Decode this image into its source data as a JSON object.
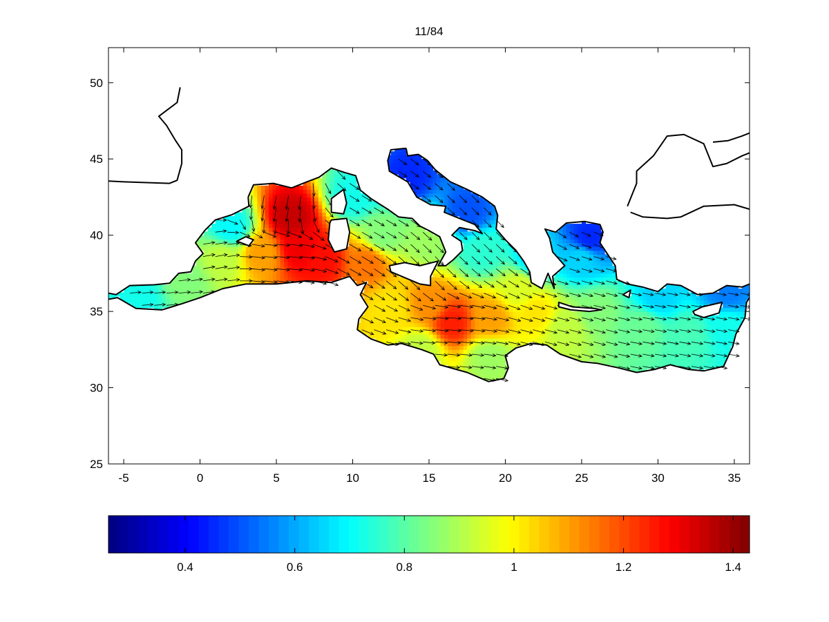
{
  "chart_data": {
    "type": "heatmap",
    "subtype": "geographic vector field over colored scalar field",
    "title": "11/84",
    "xlabel": "",
    "ylabel": "",
    "xlim": [
      -6,
      36
    ],
    "ylim": [
      25,
      52.3
    ],
    "xticks": [
      -5,
      0,
      5,
      10,
      15,
      20,
      25,
      30,
      35
    ],
    "yticks": [
      25,
      30,
      35,
      40,
      45,
      50
    ],
    "grid": false,
    "colormap": "jet",
    "colorbar": {
      "orientation": "horizontal",
      "location": "bottom",
      "range": [
        0.26,
        1.43
      ],
      "ticks": [
        0.4,
        0.6,
        0.8,
        1,
        1.2,
        1.4
      ]
    },
    "field_samples": [
      {
        "lon": 6,
        "lat": 41.2,
        "value": 1.35
      },
      {
        "lon": 6.5,
        "lat": 39.2,
        "value": 1.3
      },
      {
        "lon": 8,
        "lat": 38.5,
        "value": 1.27
      },
      {
        "lon": 11,
        "lat": 38.2,
        "value": 1.15
      },
      {
        "lon": 4,
        "lat": 38.8,
        "value": 1.1
      },
      {
        "lon": 1.5,
        "lat": 38.5,
        "value": 0.92
      },
      {
        "lon": -1,
        "lat": 37,
        "value": 0.85
      },
      {
        "lon": -4,
        "lat": 36,
        "value": 0.72
      },
      {
        "lon": 2,
        "lat": 40.5,
        "value": 0.7
      },
      {
        "lon": 10,
        "lat": 42.5,
        "value": 0.72
      },
      {
        "lon": 12,
        "lat": 40,
        "value": 0.85
      },
      {
        "lon": 15,
        "lat": 39.8,
        "value": 0.88
      },
      {
        "lon": 13.5,
        "lat": 43.8,
        "value": 0.45
      },
      {
        "lon": 17.5,
        "lat": 41.5,
        "value": 0.5
      },
      {
        "lon": 18.5,
        "lat": 39,
        "value": 0.75
      },
      {
        "lon": 16.5,
        "lat": 34.3,
        "value": 1.25
      },
      {
        "lon": 15,
        "lat": 35.5,
        "value": 1.12
      },
      {
        "lon": 19,
        "lat": 34.5,
        "value": 1.1
      },
      {
        "lon": 12.5,
        "lat": 35.2,
        "value": 1.02
      },
      {
        "lon": 14.5,
        "lat": 32.5,
        "value": 0.92
      },
      {
        "lon": 19,
        "lat": 32,
        "value": 0.88
      },
      {
        "lon": 22,
        "lat": 35,
        "value": 1.02
      },
      {
        "lon": 24,
        "lat": 34,
        "value": 0.92
      },
      {
        "lon": 26,
        "lat": 35,
        "value": 0.85
      },
      {
        "lon": 29,
        "lat": 34,
        "value": 0.82
      },
      {
        "lon": 32,
        "lat": 33.5,
        "value": 0.78
      },
      {
        "lon": 34.5,
        "lat": 34,
        "value": 0.72
      },
      {
        "lon": 30,
        "lat": 36,
        "value": 0.65
      },
      {
        "lon": 34.5,
        "lat": 36.3,
        "value": 0.55
      },
      {
        "lon": 22,
        "lat": 38.5,
        "value": 0.65
      },
      {
        "lon": 25,
        "lat": 38.5,
        "value": 0.65
      },
      {
        "lon": 25.5,
        "lat": 39.8,
        "value": 0.45
      },
      {
        "lon": 21,
        "lat": 36.5,
        "value": 0.95
      }
    ],
    "wind_direction_deg_samples": [
      {
        "lon": 5,
        "lat": 42,
        "dir": 190
      },
      {
        "lon": 5,
        "lat": 39,
        "dir": 95
      },
      {
        "lon": 0,
        "lat": 38.5,
        "dir": 80
      },
      {
        "lon": -3,
        "lat": 36,
        "dir": 85
      },
      {
        "lon": 11,
        "lat": 41,
        "dir": 120
      },
      {
        "lon": 16,
        "lat": 34,
        "dir": 95
      },
      {
        "lon": 15,
        "lat": 38,
        "dir": 135
      },
      {
        "lon": 25,
        "lat": 34,
        "dir": 105
      },
      {
        "lon": 30,
        "lat": 34,
        "dir": 100
      },
      {
        "lon": 18,
        "lat": 41,
        "dir": 135
      }
    ],
    "coastline": {
      "iberia_southeast": [
        [
          -6,
          36.2
        ],
        [
          -5.5,
          36.1
        ],
        [
          -4.6,
          36.7
        ],
        [
          -3,
          36.75
        ],
        [
          -2,
          36.85
        ],
        [
          -1.4,
          37.5
        ],
        [
          -0.6,
          37.6
        ],
        [
          -0.3,
          38.3
        ],
        [
          0.2,
          38.8
        ],
        [
          -0.3,
          39.5
        ],
        [
          0.3,
          40.3
        ],
        [
          1,
          41
        ],
        [
          2.1,
          41.35
        ],
        [
          3.2,
          41.9
        ],
        [
          3.15,
          42.5
        ]
      ],
      "france_italy": [
        [
          3.15,
          42.5
        ],
        [
          3.5,
          43.3
        ],
        [
          4.8,
          43.4
        ],
        [
          6,
          43.1
        ],
        [
          7,
          43.5
        ],
        [
          7.8,
          43.8
        ],
        [
          8.6,
          44.4
        ],
        [
          9.5,
          44.1
        ],
        [
          10.2,
          43.9
        ],
        [
          10.5,
          42.95
        ],
        [
          11.2,
          42.4
        ],
        [
          12.3,
          41.7
        ],
        [
          13,
          41.2
        ],
        [
          13.9,
          41.1
        ],
        [
          14.4,
          40.6
        ],
        [
          15,
          40.3
        ],
        [
          15.7,
          39.9
        ],
        [
          16.1,
          38.9
        ],
        [
          15.6,
          38
        ],
        [
          16.1,
          38
        ],
        [
          16.6,
          38.4
        ],
        [
          17.2,
          39
        ],
        [
          17.1,
          39.6
        ],
        [
          16.5,
          40
        ],
        [
          17,
          40.5
        ],
        [
          18,
          40.3
        ],
        [
          18.5,
          40.1
        ],
        [
          18,
          40.7
        ],
        [
          17,
          41.1
        ],
        [
          16,
          41.5
        ],
        [
          16.1,
          41.9
        ],
        [
          15.1,
          42
        ],
        [
          14.2,
          42.5
        ],
        [
          13.6,
          43.5
        ],
        [
          12.4,
          44.2
        ],
        [
          12.3,
          44.9
        ],
        [
          12.5,
          45.6
        ],
        [
          13.5,
          45.7
        ]
      ],
      "balkans_greece_turkey": [
        [
          13.5,
          45.7
        ],
        [
          13.6,
          45.2
        ],
        [
          14.3,
          45.3
        ],
        [
          14.9,
          44.9
        ],
        [
          15.4,
          44.3
        ],
        [
          16.4,
          43.5
        ],
        [
          17.5,
          43
        ],
        [
          18.5,
          42.5
        ],
        [
          19.3,
          41.9
        ],
        [
          19.5,
          41.3
        ],
        [
          19.4,
          40.4
        ],
        [
          20,
          39.7
        ],
        [
          20.7,
          39
        ],
        [
          21.2,
          38.3
        ],
        [
          21.6,
          37.6
        ],
        [
          21.7,
          36.9
        ],
        [
          22.4,
          36.5
        ],
        [
          22.8,
          37.5
        ],
        [
          23.2,
          36.5
        ],
        [
          23.1,
          37.3
        ],
        [
          23.9,
          38
        ],
        [
          23.1,
          38.9
        ],
        [
          22.9,
          39.8
        ],
        [
          22.6,
          40.4
        ],
        [
          23.3,
          40.2
        ],
        [
          24,
          40.8
        ],
        [
          25.2,
          40.9
        ],
        [
          26.2,
          40.7
        ],
        [
          26.4,
          40.2
        ],
        [
          26.2,
          39.5
        ],
        [
          26.8,
          38.6
        ],
        [
          27.2,
          38
        ],
        [
          27.3,
          37.1
        ],
        [
          28,
          36.8
        ],
        [
          29,
          36.6
        ],
        [
          30,
          36.3
        ],
        [
          30.6,
          36.8
        ],
        [
          31.5,
          36.7
        ],
        [
          32.6,
          36.1
        ],
        [
          33.6,
          36.2
        ],
        [
          34.5,
          36.7
        ],
        [
          35.5,
          36.6
        ],
        [
          36,
          36.8
        ]
      ],
      "africa_levant": [
        [
          -6,
          35.8
        ],
        [
          -5.4,
          35.9
        ],
        [
          -4.2,
          35.2
        ],
        [
          -2.5,
          35.1
        ],
        [
          -1.2,
          35.5
        ],
        [
          0,
          35.9
        ],
        [
          1.5,
          36.5
        ],
        [
          3,
          36.8
        ],
        [
          5,
          36.8
        ],
        [
          7,
          37
        ],
        [
          8.6,
          36.9
        ],
        [
          9.8,
          37.3
        ],
        [
          10.3,
          36.7
        ],
        [
          10.9,
          36.9
        ],
        [
          10.5,
          36.1
        ],
        [
          11,
          35.3
        ],
        [
          10.4,
          34.5
        ],
        [
          10.3,
          33.8
        ],
        [
          11.2,
          33.2
        ],
        [
          12.3,
          32.8
        ],
        [
          13.2,
          32.9
        ],
        [
          14.5,
          32.5
        ],
        [
          15.3,
          32.2
        ],
        [
          15.7,
          31.5
        ],
        [
          17.5,
          31
        ],
        [
          18.9,
          30.4
        ],
        [
          19.9,
          30.6
        ],
        [
          20.2,
          31.3
        ],
        [
          20,
          32.1
        ],
        [
          20.7,
          32.6
        ],
        [
          21.7,
          32.9
        ],
        [
          22.7,
          32.8
        ],
        [
          23.6,
          32.2
        ],
        [
          25,
          31.7
        ],
        [
          26,
          31.6
        ],
        [
          27.4,
          31.3
        ],
        [
          28.6,
          31
        ],
        [
          29.8,
          31.2
        ],
        [
          30.8,
          31.5
        ],
        [
          32,
          31.2
        ],
        [
          33,
          31.1
        ],
        [
          34.3,
          31.4
        ],
        [
          34.9,
          32.7
        ],
        [
          35.1,
          33.5
        ],
        [
          35.7,
          34.6
        ],
        [
          35.8,
          35.6
        ],
        [
          36,
          35.9
        ]
      ],
      "atlantic_europe": [
        [
          -6,
          43.55
        ],
        [
          -5,
          43.5
        ],
        [
          -3.5,
          43.45
        ],
        [
          -2,
          43.4
        ],
        [
          -1.5,
          43.6
        ],
        [
          -1.2,
          44.7
        ],
        [
          -1.2,
          45.6
        ],
        [
          -1.6,
          46.2
        ],
        [
          -2.2,
          47.2
        ],
        [
          -2.7,
          47.8
        ],
        [
          -1.5,
          48.7
        ],
        [
          -1.3,
          49.7
        ]
      ],
      "black_sea": [
        [
          28.2,
          41.5
        ],
        [
          29,
          41.2
        ],
        [
          30.6,
          41.1
        ],
        [
          31.5,
          41.2
        ],
        [
          33,
          41.9
        ],
        [
          35,
          42
        ],
        [
          36,
          41.7
        ]
      ],
      "black_sea_north": [
        [
          28,
          41.9
        ],
        [
          28.6,
          43.4
        ],
        [
          28.6,
          44.2
        ],
        [
          29.7,
          45.2
        ],
        [
          30.6,
          46.5
        ],
        [
          31.7,
          46.6
        ],
        [
          33,
          46
        ],
        [
          33.6,
          44.5
        ],
        [
          34.5,
          44.7
        ],
        [
          35.5,
          45.2
        ],
        [
          36,
          45.4
        ]
      ],
      "azov_crimea": [
        [
          33.6,
          46.1
        ],
        [
          34.6,
          46.2
        ],
        [
          35.5,
          46.5
        ],
        [
          36,
          46.7
        ]
      ]
    },
    "islands": [
      [
        [
          8.6,
          41
        ],
        [
          9.6,
          41.1
        ],
        [
          9.8,
          40.2
        ],
        [
          9.6,
          39.1
        ],
        [
          8.8,
          38.9
        ],
        [
          8.4,
          39.7
        ],
        [
          8.5,
          40.8
        ]
      ],
      [
        [
          8.6,
          41.5
        ],
        [
          9.4,
          41.4
        ],
        [
          9.6,
          42.1
        ],
        [
          9.4,
          43
        ],
        [
          8.6,
          42.4
        ]
      ],
      [
        [
          12.4,
          38
        ],
        [
          13.4,
          38.2
        ],
        [
          14.4,
          38
        ],
        [
          15.6,
          38.3
        ],
        [
          15.1,
          37.3
        ],
        [
          15.1,
          36.7
        ],
        [
          14.4,
          36.8
        ],
        [
          12.5,
          37.6
        ]
      ],
      [
        [
          2.4,
          39.6
        ],
        [
          3,
          39.9
        ],
        [
          3.5,
          39.7
        ],
        [
          3.2,
          39.3
        ],
        [
          2.7,
          39.5
        ]
      ],
      [
        [
          23.5,
          35.6
        ],
        [
          24.4,
          35.3
        ],
        [
          25.8,
          35.2
        ],
        [
          26.3,
          35.1
        ],
        [
          25.5,
          35
        ],
        [
          24.3,
          35.1
        ],
        [
          23.5,
          35.3
        ]
      ],
      [
        [
          32.3,
          35
        ],
        [
          32.9,
          35.3
        ],
        [
          34.2,
          35.6
        ],
        [
          34,
          34.9
        ],
        [
          33,
          34.6
        ],
        [
          32.4,
          34.8
        ]
      ],
      [
        [
          27.7,
          36.1
        ],
        [
          28.2,
          36.4
        ],
        [
          28.1,
          35.9
        ]
      ]
    ]
  }
}
